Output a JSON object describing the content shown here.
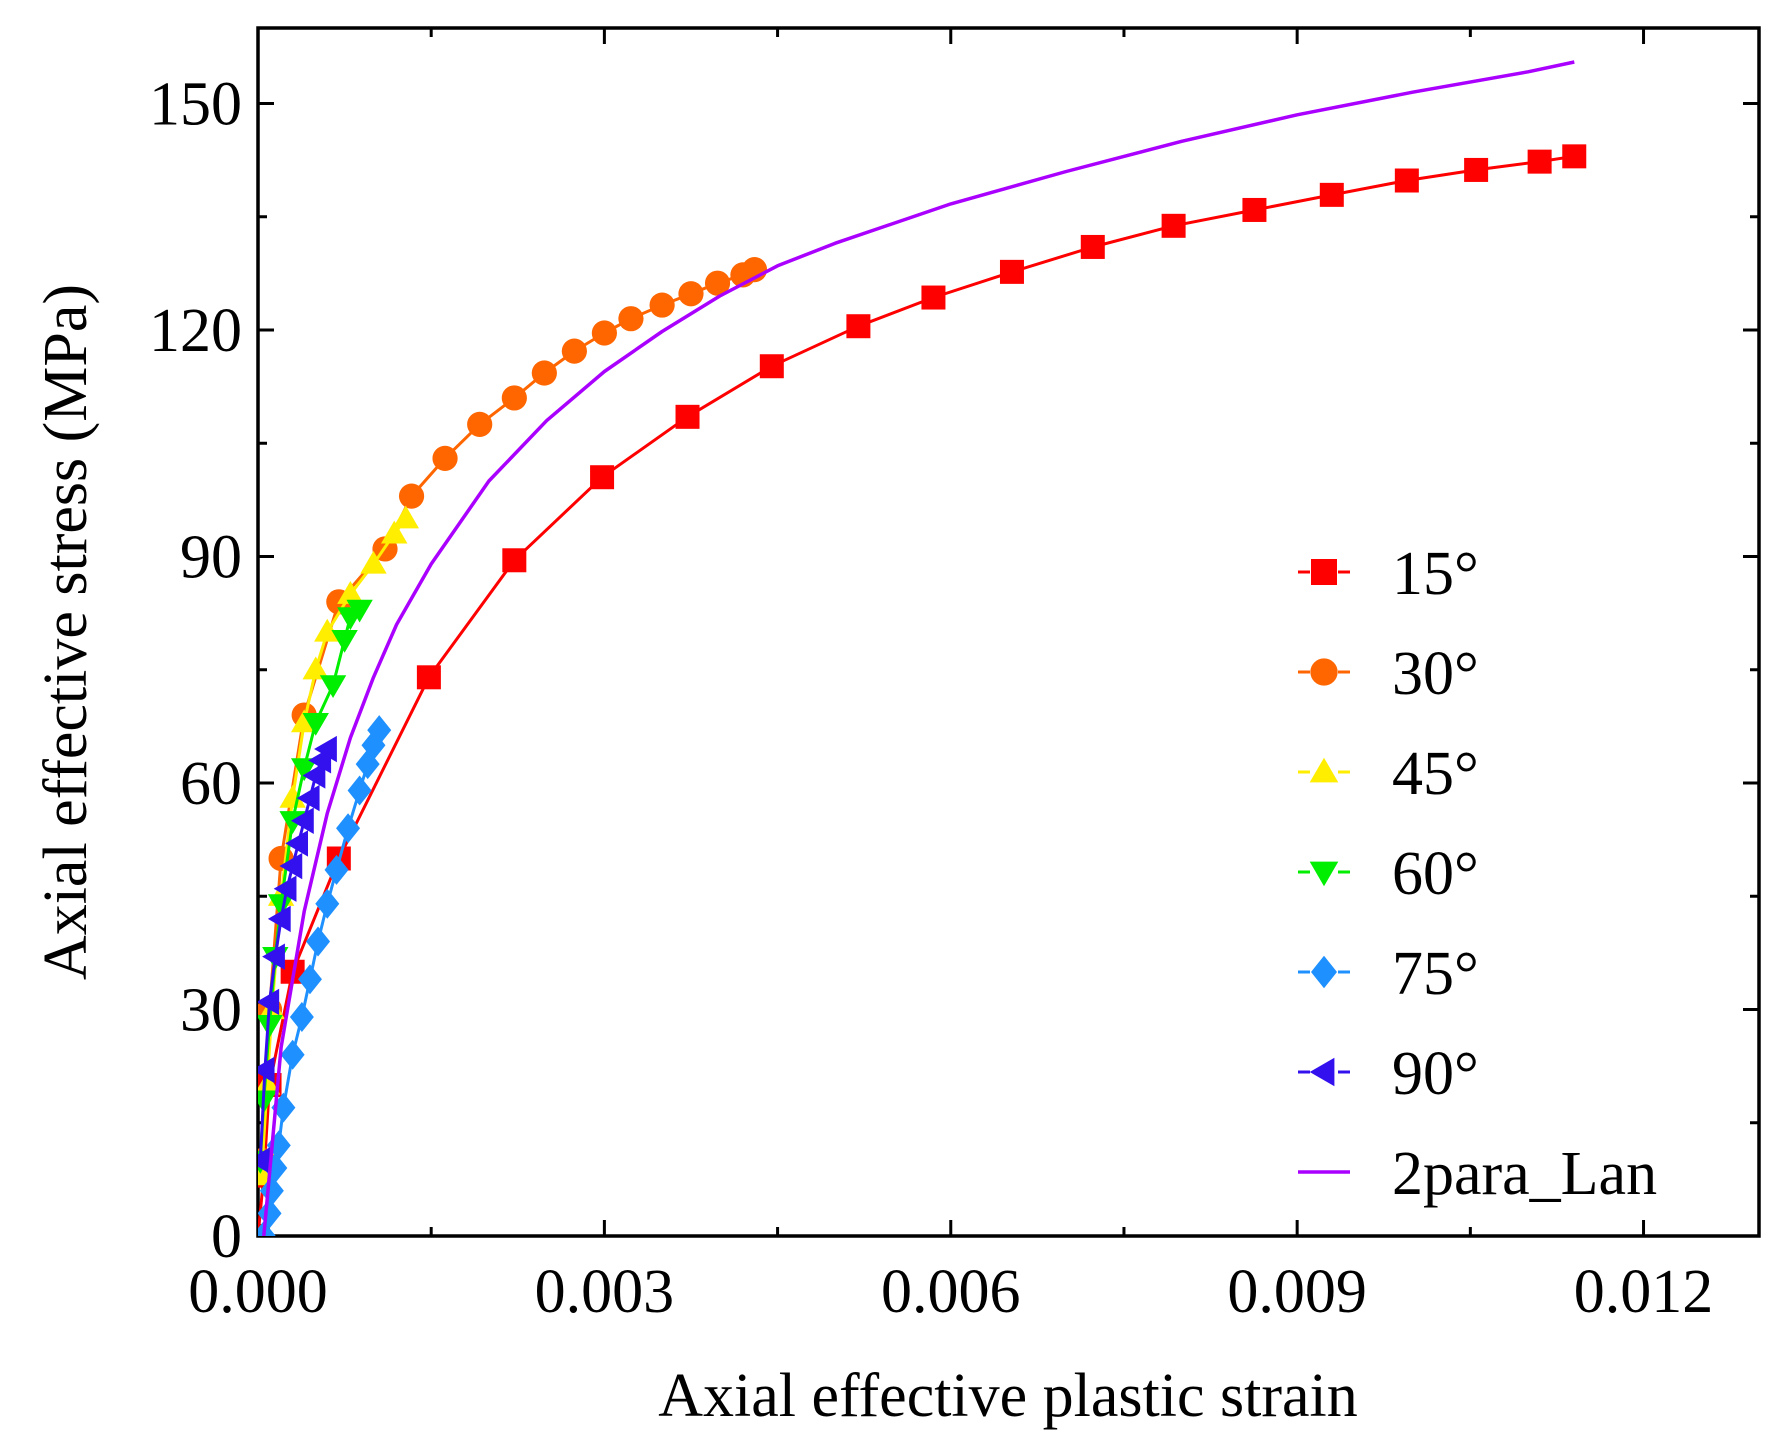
{
  "chart_data": {
    "type": "scatter",
    "title": "",
    "xlabel": "Axial effective plastic strain",
    "ylabel": "Axial effective stress (MPa)",
    "xlim": [
      0.0,
      0.013
    ],
    "ylim": [
      0,
      160
    ],
    "xticks": [
      "0.000",
      "0.003",
      "0.006",
      "0.009",
      "0.012"
    ],
    "xtick_values": [
      0.0,
      0.003,
      0.006,
      0.009,
      0.012
    ],
    "yticks": [
      "0",
      "30",
      "60",
      "90",
      "120",
      "150"
    ],
    "ytick_values": [
      0,
      30,
      60,
      90,
      120,
      150
    ],
    "grid": false,
    "legend_position": "bottom-right",
    "series": [
      {
        "name": "15°",
        "marker": "square",
        "color": "#ff0000",
        "line": "solid",
        "points": [
          [
            0.0,
            0
          ],
          [
            5e-05,
            8
          ],
          [
            0.0001,
            20
          ],
          [
            0.0003,
            35
          ],
          [
            0.0007,
            50
          ],
          [
            0.00148,
            74
          ],
          [
            0.00222,
            89.5
          ],
          [
            0.00298,
            100.5
          ],
          [
            0.00372,
            108.5
          ],
          [
            0.00445,
            115.2
          ],
          [
            0.0052,
            120.5
          ],
          [
            0.00585,
            124.3
          ],
          [
            0.00653,
            127.7
          ],
          [
            0.00723,
            131
          ],
          [
            0.00793,
            133.8
          ],
          [
            0.00863,
            135.9
          ],
          [
            0.0093,
            137.9
          ],
          [
            0.00995,
            139.8
          ],
          [
            0.01055,
            141.2
          ],
          [
            0.0111,
            142.3
          ],
          [
            0.0114,
            143
          ]
        ]
      },
      {
        "name": "30°",
        "marker": "circle",
        "color": "#ff6600",
        "line": "solid",
        "points": [
          [
            4e-05,
            10
          ],
          [
            0.0001,
            30
          ],
          [
            0.0002,
            50
          ],
          [
            0.0004,
            69
          ],
          [
            0.0007,
            84
          ],
          [
            0.0011,
            91
          ],
          [
            0.00133,
            98
          ],
          [
            0.00162,
            103
          ],
          [
            0.00192,
            107.5
          ],
          [
            0.00222,
            111
          ],
          [
            0.00248,
            114.3
          ],
          [
            0.00274,
            117.2
          ],
          [
            0.003,
            119.6
          ],
          [
            0.00323,
            121.5
          ],
          [
            0.0035,
            123.3
          ],
          [
            0.00375,
            124.8
          ],
          [
            0.00398,
            126.2
          ],
          [
            0.0042,
            127.3
          ],
          [
            0.0043,
            128
          ]
        ]
      },
      {
        "name": "45°",
        "marker": "triangle-up",
        "color": "#ffee00",
        "line": "solid",
        "points": [
          [
            3e-05,
            8
          ],
          [
            8e-05,
            20
          ],
          [
            0.00012,
            30
          ],
          [
            0.0002,
            45
          ],
          [
            0.0003,
            58
          ],
          [
            0.0004,
            68
          ],
          [
            0.0005,
            75
          ],
          [
            0.0006,
            80
          ],
          [
            0.0008,
            85
          ],
          [
            0.001,
            89
          ],
          [
            0.00118,
            93
          ],
          [
            0.00128,
            95
          ]
        ]
      },
      {
        "name": "60°",
        "marker": "triangle-down",
        "color": "#00ee00",
        "line": "solid",
        "points": [
          [
            2e-05,
            10
          ],
          [
            5e-05,
            18
          ],
          [
            0.0001,
            28
          ],
          [
            0.00015,
            37
          ],
          [
            0.0002,
            44
          ],
          [
            0.0003,
            55
          ],
          [
            0.0004,
            62
          ],
          [
            0.0005,
            68
          ],
          [
            0.00065,
            73
          ],
          [
            0.00075,
            79
          ],
          [
            0.0008,
            82
          ],
          [
            0.00088,
            83
          ]
        ]
      },
      {
        "name": "75°",
        "marker": "diamond",
        "color": "#1e90ff",
        "line": "solid",
        "points": [
          [
            5e-05,
            0
          ],
          [
            0.0001,
            3
          ],
          [
            0.00012,
            6
          ],
          [
            0.00015,
            9
          ],
          [
            0.00018,
            12
          ],
          [
            0.00022,
            17
          ],
          [
            0.0003,
            24
          ],
          [
            0.00038,
            29
          ],
          [
            0.00045,
            34
          ],
          [
            0.00052,
            39
          ],
          [
            0.0006,
            44
          ],
          [
            0.00068,
            48.5
          ],
          [
            0.00078,
            54
          ],
          [
            0.00088,
            59
          ],
          [
            0.00095,
            62.5
          ],
          [
            0.001,
            65
          ],
          [
            0.00105,
            67
          ]
        ]
      },
      {
        "name": "90°",
        "marker": "triangle-left",
        "color": "#3311ee",
        "line": "solid",
        "points": [
          [
            2e-05,
            10
          ],
          [
            6e-05,
            22
          ],
          [
            0.0001,
            31
          ],
          [
            0.00015,
            37
          ],
          [
            0.0002,
            42
          ],
          [
            0.00025,
            46
          ],
          [
            0.0003,
            49
          ],
          [
            0.00035,
            52
          ],
          [
            0.0004,
            55
          ],
          [
            0.00045,
            58
          ],
          [
            0.0005,
            61
          ],
          [
            0.00055,
            63
          ],
          [
            0.0006,
            64.5
          ]
        ]
      },
      {
        "name": "2para_Lan",
        "marker": "none",
        "color": "#aa00ff",
        "line": "solid",
        "points": [
          [
            5e-05,
            0
          ],
          [
            0.0002,
            25
          ],
          [
            0.0004,
            43
          ],
          [
            0.0006,
            56
          ],
          [
            0.0008,
            66
          ],
          [
            0.001,
            74
          ],
          [
            0.0012,
            81
          ],
          [
            0.0015,
            89
          ],
          [
            0.002,
            100
          ],
          [
            0.0025,
            108
          ],
          [
            0.003,
            114.5
          ],
          [
            0.0035,
            119.8
          ],
          [
            0.004,
            124.5
          ],
          [
            0.0045,
            128.5
          ],
          [
            0.005,
            131.5
          ],
          [
            0.006,
            136.7
          ],
          [
            0.007,
            141
          ],
          [
            0.008,
            145
          ],
          [
            0.009,
            148.5
          ],
          [
            0.01,
            151.5
          ],
          [
            0.011,
            154.2
          ],
          [
            0.0114,
            155.5
          ]
        ]
      }
    ]
  }
}
